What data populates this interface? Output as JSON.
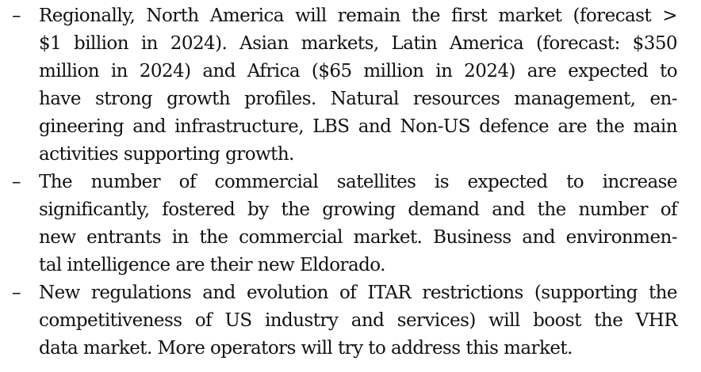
{
  "bullet_symbol": "–",
  "items": [
    {
      "lines": [
        "Regionally, North America will remain the first market (forecast >",
        "$1 billion in 2024). Asian markets, Latin America (forecast: $350",
        "million in 2024) and Africa ($65 million in 2024) are expected to",
        "have strong growth profiles. Natural resources management, en-",
        "gineering and infrastructure, LBS and Non-US defence are the main",
        "activities supporting growth."
      ]
    },
    {
      "lines": [
        "The number of commercial satellites is expected to increase",
        "significantly, fostered by the growing demand and the number of",
        "new entrants in the commercial market. Business and environmen-",
        "tal intelligence are their new Eldorado."
      ]
    },
    {
      "lines": [
        "New regulations and evolution of ITAR restrictions (supporting the",
        "competitiveness of US industry and services) will boost the VHR",
        "data market. More operators will try to address this market."
      ]
    }
  ]
}
